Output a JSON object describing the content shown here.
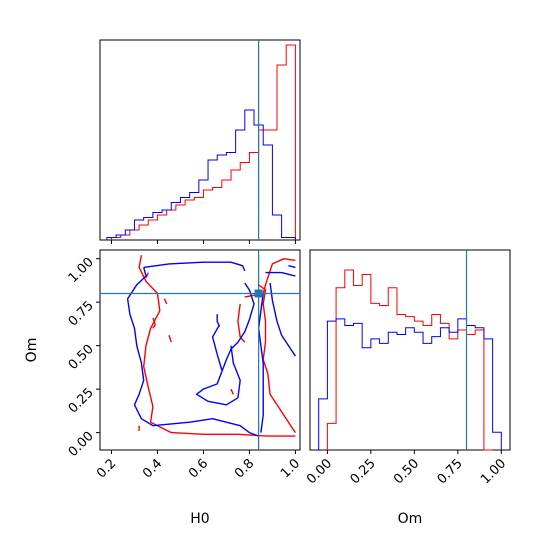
{
  "chart_data": {
    "type": "corner",
    "parameters": [
      {
        "name": "H0",
        "label": "H0",
        "lim": [
          0.15,
          1.02
        ],
        "ticks": [
          0.2,
          0.4,
          0.6,
          0.8,
          1.0
        ],
        "tick_labels": [
          "0.2",
          "0.4",
          "0.6",
          "0.8",
          "1.0"
        ],
        "truth": 0.84
      },
      {
        "name": "Om",
        "label": "Om",
        "lim": [
          -0.1,
          1.05
        ],
        "ticks": [
          0.0,
          0.25,
          0.5,
          0.75,
          1.0
        ],
        "tick_labels": [
          "0.00",
          "0.25",
          "0.50",
          "0.75",
          "1.00"
        ],
        "truth": 0.8
      }
    ],
    "colors": {
      "red": "#ff0000",
      "blue": "#0000ff",
      "truth": "#1f77b4",
      "axes": "#000000"
    },
    "series": [
      {
        "color": "red",
        "h0_hist": {
          "edges": [
            0.2,
            0.24,
            0.28,
            0.32,
            0.36,
            0.4,
            0.44,
            0.48,
            0.52,
            0.56,
            0.6,
            0.64,
            0.68,
            0.72,
            0.76,
            0.8,
            0.84,
            0.88,
            0.92,
            0.96,
            1.0
          ],
          "counts": [
            0.01,
            0.02,
            0.04,
            0.06,
            0.08,
            0.1,
            0.12,
            0.14,
            0.16,
            0.17,
            0.2,
            0.21,
            0.24,
            0.28,
            0.31,
            0.35,
            0.44,
            0.44,
            0.7,
            0.78
          ]
        },
        "om_hist": {
          "edges": [
            0.0,
            0.05,
            0.1,
            0.15,
            0.2,
            0.25,
            0.3,
            0.35,
            0.4,
            0.45,
            0.5,
            0.55,
            0.6,
            0.65,
            0.7,
            0.75,
            0.8,
            0.85,
            0.9,
            0.95
          ],
          "counts": [
            0.12,
            0.73,
            0.81,
            0.74,
            0.79,
            0.66,
            0.65,
            0.73,
            0.61,
            0.6,
            0.58,
            0.56,
            0.61,
            0.57,
            0.5,
            0.54,
            0.52,
            0.54,
            0.0
          ]
        }
      },
      {
        "color": "blue",
        "h0_hist": {
          "edges": [
            0.18,
            0.22,
            0.26,
            0.3,
            0.34,
            0.38,
            0.42,
            0.46,
            0.5,
            0.54,
            0.58,
            0.62,
            0.66,
            0.7,
            0.74,
            0.78,
            0.82,
            0.86,
            0.9,
            0.94,
            1.0
          ],
          "counts": [
            0.01,
            0.02,
            0.04,
            0.08,
            0.09,
            0.11,
            0.12,
            0.15,
            0.17,
            0.19,
            0.24,
            0.32,
            0.34,
            0.35,
            0.44,
            0.52,
            0.46,
            0.38,
            0.1,
            0.01
          ]
        },
        "om_hist": {
          "edges": [
            -0.05,
            0.0,
            0.05,
            0.1,
            0.15,
            0.2,
            0.25,
            0.3,
            0.35,
            0.4,
            0.45,
            0.5,
            0.55,
            0.6,
            0.65,
            0.7,
            0.75,
            0.8,
            0.85,
            0.9,
            0.95,
            1.0
          ],
          "counts": [
            0.23,
            0.58,
            0.59,
            0.56,
            0.57,
            0.46,
            0.5,
            0.48,
            0.53,
            0.52,
            0.55,
            0.53,
            0.48,
            0.51,
            0.55,
            0.53,
            0.59,
            0.56,
            0.55,
            0.5,
            0.08
          ]
        }
      }
    ],
    "contours": [
      {
        "color": "red",
        "points": [
          [
            0.33,
            1.02
          ],
          [
            0.32,
            0.95
          ],
          [
            0.35,
            0.87
          ],
          [
            0.4,
            0.8
          ],
          [
            0.41,
            0.7
          ],
          [
            0.37,
            0.6
          ],
          [
            0.35,
            0.5
          ],
          [
            0.34,
            0.38
          ],
          [
            0.36,
            0.26
          ],
          [
            0.38,
            0.15
          ],
          [
            0.37,
            0.06
          ],
          [
            0.46,
            0.0
          ],
          [
            0.6,
            -0.01
          ],
          [
            0.75,
            -0.01
          ],
          [
            0.88,
            -0.02
          ],
          [
            1.0,
            -0.02
          ]
        ]
      },
      {
        "color": "red",
        "points": [
          [
            0.78,
            0.78
          ],
          [
            0.86,
            0.8
          ],
          [
            0.87,
            0.85
          ],
          [
            0.9,
            0.97
          ],
          [
            0.95,
            1.0
          ],
          [
            1.0,
            0.99
          ]
        ]
      },
      {
        "color": "red",
        "points": [
          [
            0.84,
            0.85
          ],
          [
            0.87,
            0.82
          ],
          [
            0.86,
            0.74
          ],
          [
            0.87,
            0.64
          ],
          [
            0.87,
            0.52
          ],
          [
            0.86,
            0.42
          ],
          [
            0.88,
            0.34
          ],
          [
            0.89,
            0.22
          ],
          [
            0.94,
            0.12
          ],
          [
            0.98,
            0.04
          ],
          [
            1.0,
            0.0
          ]
        ]
      },
      {
        "color": "red",
        "points": [
          [
            0.76,
            0.74
          ],
          [
            0.75,
            0.64
          ],
          [
            0.76,
            0.55
          ],
          [
            0.78,
            0.52
          ]
        ]
      },
      {
        "color": "red",
        "points": [
          [
            0.45,
            0.56
          ],
          [
            0.46,
            0.52
          ]
        ]
      },
      {
        "color": "red",
        "points": [
          [
            0.38,
            0.66
          ],
          [
            0.39,
            0.62
          ],
          [
            0.38,
            0.6
          ]
        ]
      },
      {
        "color": "red",
        "points": [
          [
            0.43,
            0.77
          ],
          [
            0.44,
            0.74
          ]
        ]
      },
      {
        "color": "red",
        "points": [
          [
            0.36,
            0.92
          ],
          [
            0.35,
            0.89
          ]
        ]
      },
      {
        "color": "red",
        "points": [
          [
            0.72,
            0.25
          ],
          [
            0.73,
            0.22
          ]
        ]
      },
      {
        "color": "red",
        "points": [
          [
            0.32,
            0.04
          ],
          [
            0.32,
            0.01
          ]
        ]
      },
      {
        "color": "blue",
        "points": [
          [
            0.34,
            0.95
          ],
          [
            0.35,
            0.9
          ],
          [
            0.31,
            0.85
          ],
          [
            0.27,
            0.77
          ],
          [
            0.28,
            0.68
          ],
          [
            0.3,
            0.6
          ],
          [
            0.31,
            0.5
          ],
          [
            0.33,
            0.4
          ],
          [
            0.34,
            0.3
          ],
          [
            0.32,
            0.22
          ],
          [
            0.3,
            0.16
          ],
          [
            0.33,
            0.08
          ],
          [
            0.38,
            0.04
          ],
          [
            0.46,
            0.05
          ],
          [
            0.54,
            0.06
          ],
          [
            0.64,
            0.08
          ],
          [
            0.7,
            0.06
          ],
          [
            0.76,
            0.04
          ],
          [
            0.8,
            0.0
          ],
          [
            0.84,
            -0.02
          ]
        ]
      },
      {
        "color": "blue",
        "points": [
          [
            0.34,
            0.95
          ],
          [
            0.45,
            0.97
          ],
          [
            0.6,
            0.98
          ],
          [
            0.72,
            0.98
          ],
          [
            0.77,
            0.96
          ],
          [
            0.78,
            0.93
          ]
        ]
      },
      {
        "color": "blue",
        "points": [
          [
            0.78,
            0.86
          ],
          [
            0.8,
            0.82
          ],
          [
            0.82,
            0.74
          ],
          [
            0.8,
            0.65
          ],
          [
            0.78,
            0.58
          ],
          [
            0.75,
            0.52
          ],
          [
            0.72,
            0.48
          ],
          [
            0.7,
            0.42
          ],
          [
            0.68,
            0.35
          ],
          [
            0.66,
            0.28
          ],
          [
            0.6,
            0.25
          ],
          [
            0.57,
            0.22
          ],
          [
            0.62,
            0.18
          ],
          [
            0.7,
            0.16
          ],
          [
            0.75,
            0.2
          ],
          [
            0.76,
            0.3
          ],
          [
            0.73,
            0.4
          ],
          [
            0.72,
            0.5
          ]
        ]
      },
      {
        "color": "blue",
        "points": [
          [
            0.68,
            0.36
          ],
          [
            0.66,
            0.45
          ],
          [
            0.64,
            0.55
          ],
          [
            0.67,
            0.62
          ]
        ]
      },
      {
        "color": "blue",
        "points": [
          [
            0.89,
            0.86
          ],
          [
            0.9,
            0.76
          ],
          [
            0.92,
            0.64
          ],
          [
            0.94,
            0.56
          ],
          [
            0.98,
            0.48
          ],
          [
            1.0,
            0.44
          ]
        ]
      },
      {
        "color": "blue",
        "points": [
          [
            0.87,
            0.92
          ],
          [
            0.94,
            0.92
          ],
          [
            1.0,
            0.9
          ]
        ]
      },
      {
        "color": "blue",
        "points": [
          [
            0.86,
            0.8
          ],
          [
            0.85,
            0.7
          ],
          [
            0.84,
            0.6
          ],
          [
            0.85,
            0.5
          ],
          [
            0.86,
            0.4
          ],
          [
            0.86,
            0.3
          ],
          [
            0.86,
            0.2
          ],
          [
            0.86,
            0.1
          ],
          [
            0.85,
            0.0
          ]
        ]
      },
      {
        "color": "blue",
        "points": [
          [
            0.66,
            0.68
          ],
          [
            0.66,
            0.64
          ],
          [
            0.67,
            0.61
          ]
        ]
      },
      {
        "color": "blue",
        "points": [
          [
            0.97,
            0.96
          ],
          [
            1.0,
            0.95
          ]
        ]
      }
    ]
  }
}
